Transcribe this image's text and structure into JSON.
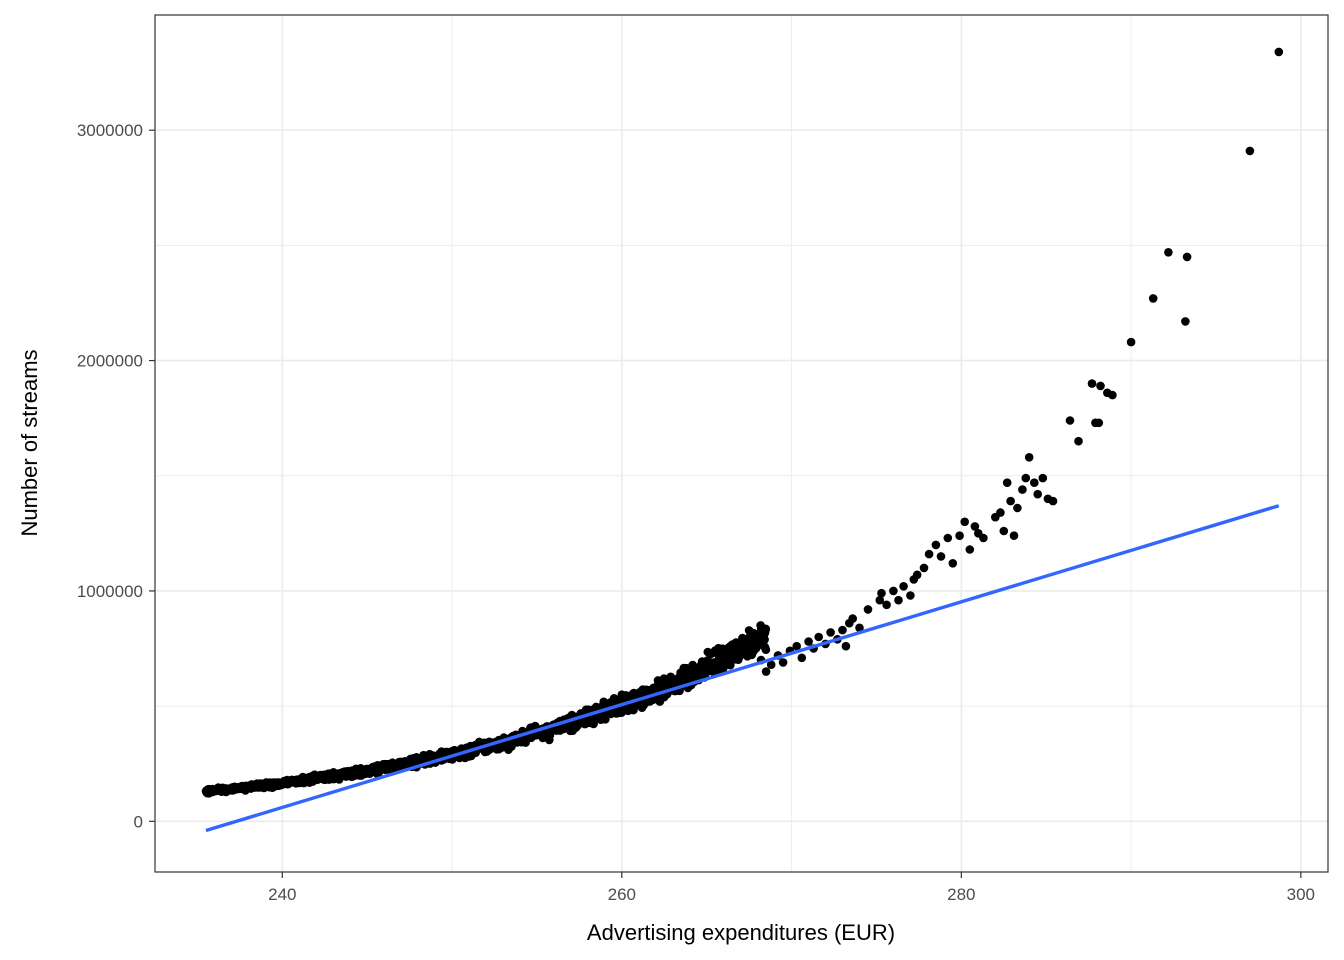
{
  "chart_data": {
    "type": "scatter",
    "title": "",
    "xlabel": "Advertising expenditures (EUR)",
    "ylabel": "Number of streams",
    "xlim": [
      232.5,
      301.6
    ],
    "ylim": [
      -220000,
      3500000
    ],
    "x_ticks": [
      240,
      260,
      280,
      300
    ],
    "x_tick_labels": [
      "240",
      "260",
      "280",
      "300"
    ],
    "y_ticks": [
      0,
      1000000,
      2000000,
      3000000
    ],
    "y_tick_labels": [
      "0",
      "1000000",
      "2000000",
      "3000000"
    ],
    "grid": true,
    "legend": "none",
    "points": {
      "color": "#000000",
      "dense_cloud": {
        "x_range": [
          235.5,
          268.5
        ],
        "n": 1600,
        "curve": "y ≈ 130000 * exp(0.0555 * (x - 235.5))",
        "spread_fraction": 0.06
      },
      "scatter": [
        [
          268.2,
          700000
        ],
        [
          268.5,
          650000
        ],
        [
          268.8,
          680000
        ],
        [
          269.2,
          720000
        ],
        [
          269.5,
          690000
        ],
        [
          269.9,
          740000
        ],
        [
          270.3,
          760000
        ],
        [
          270.6,
          710000
        ],
        [
          271.0,
          780000
        ],
        [
          271.3,
          750000
        ],
        [
          271.6,
          800000
        ],
        [
          272.0,
          770000
        ],
        [
          272.3,
          820000
        ],
        [
          272.7,
          790000
        ],
        [
          273.0,
          830000
        ],
        [
          273.2,
          760000
        ],
        [
          273.4,
          860000
        ],
        [
          273.6,
          880000
        ],
        [
          274.0,
          840000
        ],
        [
          274.5,
          920000
        ],
        [
          275.2,
          960000
        ],
        [
          275.3,
          990000
        ],
        [
          275.6,
          940000
        ],
        [
          276.0,
          1000000
        ],
        [
          276.3,
          960000
        ],
        [
          276.6,
          1020000
        ],
        [
          277.0,
          980000
        ],
        [
          277.2,
          1050000
        ],
        [
          277.4,
          1070000
        ],
        [
          277.8,
          1100000
        ],
        [
          278.1,
          1160000
        ],
        [
          278.5,
          1200000
        ],
        [
          278.8,
          1150000
        ],
        [
          279.2,
          1230000
        ],
        [
          279.5,
          1120000
        ],
        [
          279.9,
          1240000
        ],
        [
          280.2,
          1300000
        ],
        [
          280.5,
          1180000
        ],
        [
          280.8,
          1280000
        ],
        [
          281.0,
          1250000
        ],
        [
          281.3,
          1230000
        ],
        [
          282.0,
          1320000
        ],
        [
          282.3,
          1340000
        ],
        [
          282.5,
          1260000
        ],
        [
          282.7,
          1470000
        ],
        [
          282.9,
          1390000
        ],
        [
          283.1,
          1240000
        ],
        [
          283.3,
          1360000
        ],
        [
          283.6,
          1440000
        ],
        [
          283.8,
          1490000
        ],
        [
          284.0,
          1580000
        ],
        [
          284.3,
          1470000
        ],
        [
          284.5,
          1420000
        ],
        [
          284.8,
          1490000
        ],
        [
          285.1,
          1400000
        ],
        [
          285.4,
          1390000
        ],
        [
          286.4,
          1740000
        ],
        [
          286.9,
          1650000
        ],
        [
          287.7,
          1900000
        ],
        [
          287.9,
          1730000
        ],
        [
          288.1,
          1730000
        ],
        [
          288.2,
          1890000
        ],
        [
          288.6,
          1860000
        ],
        [
          288.9,
          1850000
        ],
        [
          290.0,
          2080000
        ],
        [
          291.3,
          2270000
        ],
        [
          292.2,
          2470000
        ],
        [
          293.2,
          2170000
        ],
        [
          293.3,
          2450000
        ],
        [
          297.0,
          2910000
        ],
        [
          298.7,
          3340000
        ]
      ]
    },
    "fit_line": {
      "color": "#3366FF",
      "x": [
        235.5,
        298.7
      ],
      "y": [
        -40000,
        1370000
      ]
    }
  }
}
